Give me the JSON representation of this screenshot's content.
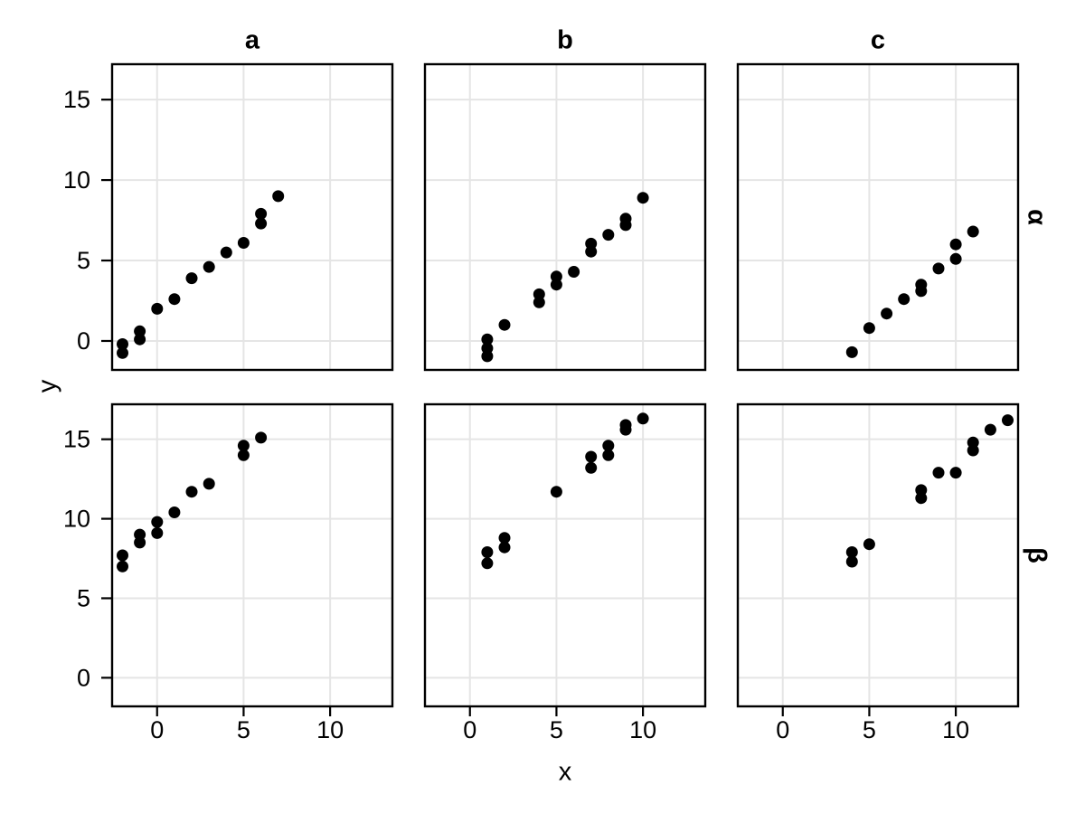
{
  "chart_data": {
    "type": "scatter",
    "title": "",
    "xlabel": "x",
    "ylabel": "y",
    "col_facets": [
      "a",
      "b",
      "c"
    ],
    "row_facets": [
      "α",
      "β"
    ],
    "x_ticks": [
      0,
      5,
      10
    ],
    "y_ticks": [
      0,
      5,
      10,
      15
    ],
    "x_range": [
      -2.6,
      13.6
    ],
    "y_range": [
      -1.8,
      17.2
    ],
    "grid": true,
    "legend": "none",
    "point_color": "#000000",
    "grid_color": "#e5e5e5",
    "border_color": "#000000",
    "background_color": "#ffffff",
    "panels": [
      {
        "col": "a",
        "row": "α",
        "points": [
          [
            -2,
            -0.2
          ],
          [
            -2,
            -0.75
          ],
          [
            -1,
            0.1
          ],
          [
            -1,
            0.6
          ],
          [
            0,
            2.0
          ],
          [
            1,
            2.6
          ],
          [
            2,
            3.9
          ],
          [
            3,
            4.6
          ],
          [
            4,
            5.5
          ],
          [
            5,
            6.1
          ],
          [
            6,
            7.3
          ],
          [
            6,
            7.9
          ],
          [
            7,
            9.0
          ]
        ]
      },
      {
        "col": "b",
        "row": "α",
        "points": [
          [
            1,
            -0.95
          ],
          [
            1,
            -0.45
          ],
          [
            1,
            0.1
          ],
          [
            2,
            1.0
          ],
          [
            4,
            2.4
          ],
          [
            4,
            2.9
          ],
          [
            5,
            3.5
          ],
          [
            5,
            4.0
          ],
          [
            6,
            4.3
          ],
          [
            7,
            5.55
          ],
          [
            7,
            6.05
          ],
          [
            8,
            6.6
          ],
          [
            9,
            7.2
          ],
          [
            9,
            7.6
          ],
          [
            10,
            8.9
          ]
        ]
      },
      {
        "col": "c",
        "row": "α",
        "points": [
          [
            4,
            -0.7
          ],
          [
            5,
            0.8
          ],
          [
            6,
            1.7
          ],
          [
            7,
            2.6
          ],
          [
            8,
            3.1
          ],
          [
            8,
            3.5
          ],
          [
            9,
            4.5
          ],
          [
            10,
            5.1
          ],
          [
            10,
            6.0
          ],
          [
            11,
            6.8
          ]
        ]
      },
      {
        "col": "a",
        "row": "β",
        "points": [
          [
            -2,
            7.0
          ],
          [
            -2,
            7.7
          ],
          [
            -1,
            8.5
          ],
          [
            -1,
            9.0
          ],
          [
            0,
            9.1
          ],
          [
            0,
            9.8
          ],
          [
            1,
            10.4
          ],
          [
            2,
            11.7
          ],
          [
            3,
            12.2
          ],
          [
            5,
            14.0
          ],
          [
            5,
            14.6
          ],
          [
            6,
            15.1
          ]
        ]
      },
      {
        "col": "b",
        "row": "β",
        "points": [
          [
            1,
            7.2
          ],
          [
            1,
            7.9
          ],
          [
            2,
            8.2
          ],
          [
            2,
            8.8
          ],
          [
            5,
            11.7
          ],
          [
            7,
            13.2
          ],
          [
            7,
            13.9
          ],
          [
            8,
            14.0
          ],
          [
            8,
            14.6
          ],
          [
            9,
            15.6
          ],
          [
            9,
            15.9
          ],
          [
            10,
            16.3
          ]
        ]
      },
      {
        "col": "c",
        "row": "β",
        "points": [
          [
            4,
            7.3
          ],
          [
            4,
            7.9
          ],
          [
            5,
            8.4
          ],
          [
            8,
            11.3
          ],
          [
            8,
            11.8
          ],
          [
            9,
            12.9
          ],
          [
            10,
            12.9
          ],
          [
            11,
            14.3
          ],
          [
            11,
            14.8
          ],
          [
            12,
            15.6
          ],
          [
            13,
            16.2
          ]
        ]
      }
    ]
  }
}
